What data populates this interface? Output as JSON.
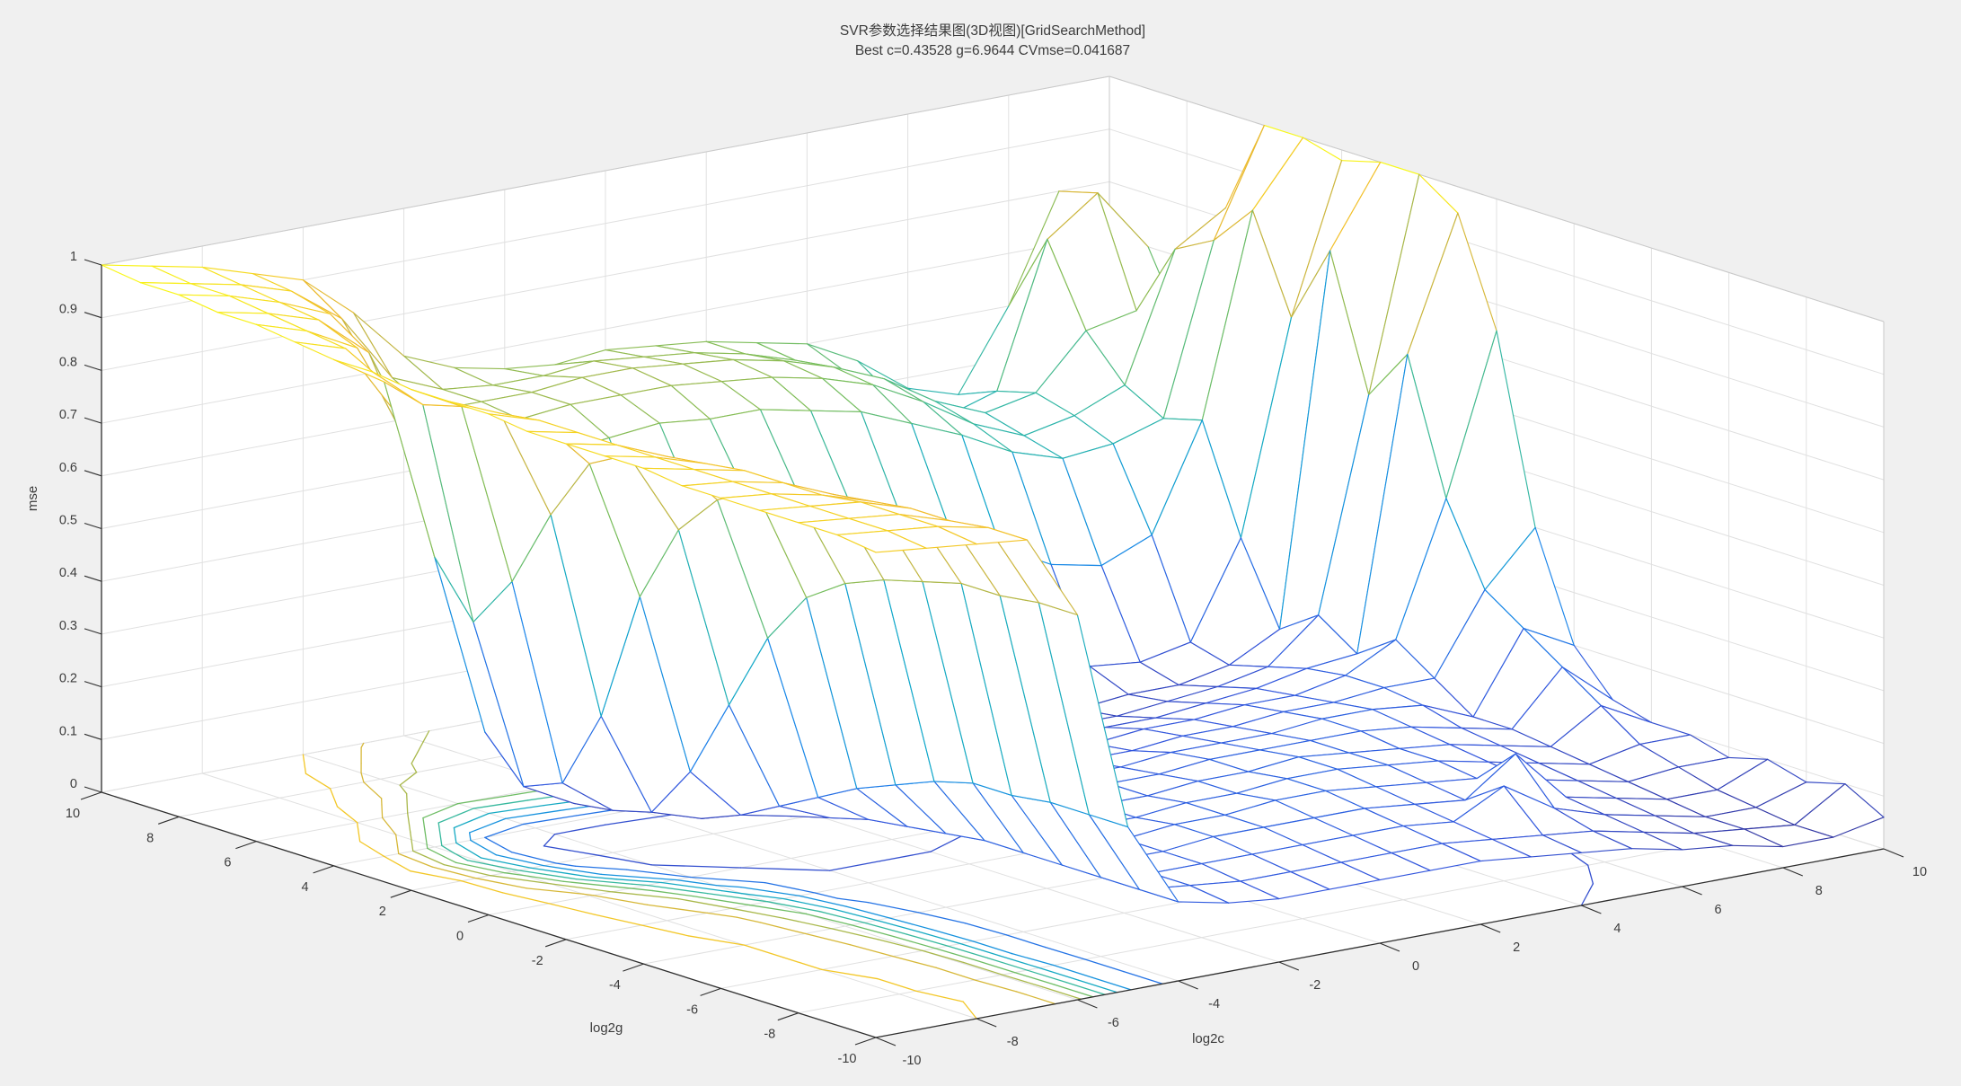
{
  "title": {
    "line1": "SVR参数选择结果图(3D视图)[GridSearchMethod]",
    "line2": "Best c=0.43528 g=6.9644 CVmse=0.041687"
  },
  "best_result": {
    "c": "0.43528",
    "g": "6.9644",
    "cvmse": "0.041687"
  },
  "colors": {
    "figure_bg": "#f0f0f0",
    "axes_bg": "#ffffff",
    "grid_line": "#e0e0e0",
    "box_edge": "#c9c9c9",
    "axis_line": "#2e2e2e",
    "text": "#3c3c3c",
    "mesh_face": "#ffffff"
  },
  "chart_data": {
    "type": "surface",
    "title": "SVR参数选择结果图(3D视图)[GridSearchMethod] / Best c=0.43528 g=6.9644 CVmse=0.041687",
    "xlabel": "log2c",
    "ylabel": "log2g",
    "zlabel": "mse",
    "xlim": [
      -10,
      10
    ],
    "ylim": [
      -10,
      10
    ],
    "zlim": [
      0,
      1
    ],
    "x_ticks": [
      -10,
      -8,
      -6,
      -4,
      -2,
      0,
      2,
      4,
      6,
      8,
      10
    ],
    "y_ticks": [
      10,
      8,
      6,
      4,
      2,
      0,
      -2,
      -4,
      -6,
      -8,
      -10
    ],
    "z_ticks": [
      0,
      0.1,
      0.2,
      0.3,
      0.4,
      0.5,
      0.6,
      0.7,
      0.8,
      0.9,
      1
    ],
    "x": [
      -10,
      -9,
      -8,
      -7,
      -6,
      -5,
      -4,
      -3,
      -2,
      -1,
      0,
      1,
      2,
      3,
      4,
      5,
      6,
      7,
      8,
      9,
      10
    ],
    "y_row_order": "log2g from +10 (first row) down to -10 (last row)",
    "y_rows": [
      10,
      9,
      8,
      7,
      6,
      5,
      4,
      3,
      2,
      1,
      0,
      -1,
      -2,
      -3,
      -4,
      -5,
      -6,
      -7,
      -8,
      -9,
      -10
    ],
    "z_cvmse": [
      [
        1.0,
        0.98,
        0.96,
        0.93,
        0.9,
        0.82,
        0.72,
        0.68,
        0.66,
        0.65,
        0.66,
        0.65,
        0.64,
        0.62,
        0.6,
        0.55,
        0.48,
        0.45,
        0.6,
        0.8,
        0.6
      ],
      [
        0.99,
        0.97,
        0.95,
        0.92,
        0.85,
        0.72,
        0.68,
        0.67,
        0.67,
        0.68,
        0.67,
        0.66,
        0.64,
        0.61,
        0.57,
        0.5,
        0.45,
        0.48,
        0.75,
        0.82,
        0.7
      ],
      [
        0.99,
        0.97,
        0.94,
        0.9,
        0.75,
        0.68,
        0.68,
        0.68,
        0.69,
        0.69,
        0.68,
        0.67,
        0.65,
        0.62,
        0.58,
        0.52,
        0.48,
        0.5,
        0.6,
        0.62,
        0.55
      ],
      [
        0.98,
        0.96,
        0.93,
        0.85,
        0.65,
        0.66,
        0.67,
        0.68,
        0.68,
        0.68,
        0.67,
        0.66,
        0.64,
        0.61,
        0.56,
        0.5,
        0.46,
        0.48,
        0.52,
        0.76,
        0.82
      ],
      [
        0.98,
        0.95,
        0.9,
        0.7,
        0.6,
        0.62,
        0.63,
        0.64,
        0.65,
        0.64,
        0.64,
        0.62,
        0.6,
        0.56,
        0.52,
        0.47,
        0.44,
        0.45,
        0.48,
        0.8,
        1.0
      ],
      [
        0.97,
        0.94,
        0.8,
        0.45,
        0.35,
        0.38,
        0.42,
        0.47,
        0.5,
        0.51,
        0.5,
        0.47,
        0.43,
        0.38,
        0.33,
        0.28,
        0.26,
        0.3,
        0.5,
        0.88,
        1.0
      ],
      [
        0.96,
        0.9,
        0.55,
        0.2,
        0.13,
        0.14,
        0.16,
        0.19,
        0.22,
        0.24,
        0.23,
        0.21,
        0.18,
        0.15,
        0.13,
        0.11,
        0.1,
        0.12,
        0.3,
        0.7,
        0.98
      ],
      [
        0.96,
        0.88,
        0.45,
        0.12,
        0.07,
        0.06,
        0.06,
        0.06,
        0.05,
        0.042,
        0.05,
        0.06,
        0.06,
        0.07,
        0.07,
        0.08,
        0.08,
        0.1,
        0.15,
        0.85,
        1.0
      ],
      [
        0.95,
        0.9,
        0.55,
        0.15,
        0.08,
        0.06,
        0.05,
        0.06,
        0.06,
        0.05,
        0.06,
        0.07,
        0.07,
        0.08,
        0.08,
        0.09,
        0.1,
        0.12,
        0.2,
        0.6,
        1.0
      ],
      [
        0.95,
        0.91,
        0.7,
        0.3,
        0.1,
        0.07,
        0.07,
        0.07,
        0.08,
        0.07,
        0.08,
        0.08,
        0.09,
        0.1,
        0.1,
        0.11,
        0.12,
        0.14,
        0.15,
        0.7,
        0.95
      ],
      [
        0.95,
        0.92,
        0.82,
        0.55,
        0.2,
        0.1,
        0.08,
        0.08,
        0.09,
        0.09,
        0.1,
        0.1,
        0.11,
        0.12,
        0.12,
        0.13,
        0.13,
        0.15,
        0.2,
        0.45,
        0.75
      ],
      [
        0.94,
        0.92,
        0.86,
        0.7,
        0.35,
        0.14,
        0.1,
        0.1,
        0.1,
        0.11,
        0.11,
        0.12,
        0.12,
        0.13,
        0.13,
        0.14,
        0.14,
        0.15,
        0.15,
        0.3,
        0.4
      ],
      [
        0.94,
        0.92,
        0.88,
        0.78,
        0.5,
        0.18,
        0.12,
        0.11,
        0.12,
        0.12,
        0.13,
        0.13,
        0.14,
        0.14,
        0.14,
        0.15,
        0.15,
        0.14,
        0.1,
        0.25,
        0.2
      ],
      [
        0.94,
        0.92,
        0.89,
        0.82,
        0.6,
        0.22,
        0.13,
        0.12,
        0.13,
        0.13,
        0.14,
        0.14,
        0.15,
        0.15,
        0.15,
        0.15,
        0.14,
        0.12,
        0.1,
        0.2,
        0.12
      ],
      [
        0.94,
        0.92,
        0.9,
        0.84,
        0.65,
        0.25,
        0.14,
        0.13,
        0.13,
        0.14,
        0.14,
        0.15,
        0.15,
        0.16,
        0.15,
        0.14,
        0.13,
        0.11,
        0.09,
        0.15,
        0.1
      ],
      [
        0.93,
        0.92,
        0.9,
        0.86,
        0.68,
        0.28,
        0.15,
        0.13,
        0.14,
        0.14,
        0.15,
        0.15,
        0.16,
        0.16,
        0.15,
        0.14,
        0.12,
        0.1,
        0.08,
        0.1,
        0.1
      ],
      [
        0.93,
        0.92,
        0.9,
        0.87,
        0.7,
        0.3,
        0.15,
        0.14,
        0.14,
        0.15,
        0.15,
        0.16,
        0.16,
        0.15,
        0.14,
        0.13,
        0.11,
        0.09,
        0.07,
        0.08,
        0.08
      ],
      [
        0.93,
        0.92,
        0.91,
        0.88,
        0.72,
        0.3,
        0.15,
        0.14,
        0.14,
        0.15,
        0.15,
        0.15,
        0.15,
        0.14,
        0.13,
        0.2,
        0.1,
        0.08,
        0.06,
        0.06,
        0.1
      ],
      [
        0.93,
        0.92,
        0.91,
        0.88,
        0.72,
        0.31,
        0.15,
        0.14,
        0.14,
        0.14,
        0.14,
        0.14,
        0.14,
        0.13,
        0.18,
        0.12,
        0.09,
        0.07,
        0.05,
        0.05,
        0.08
      ],
      [
        0.93,
        0.92,
        0.91,
        0.89,
        0.73,
        0.31,
        0.15,
        0.14,
        0.13,
        0.13,
        0.13,
        0.13,
        0.13,
        0.12,
        0.11,
        0.1,
        0.08,
        0.06,
        0.05,
        0.04,
        0.1
      ],
      [
        0.92,
        0.91,
        0.9,
        0.89,
        0.73,
        0.31,
        0.15,
        0.13,
        0.12,
        0.12,
        0.12,
        0.12,
        0.12,
        0.11,
        0.1,
        0.09,
        0.07,
        0.06,
        0.04,
        0.04,
        0.06
      ]
    ],
    "best_point": {
      "log2c": -1.2,
      "log2g": 2.8,
      "cvmse": 0.041687
    },
    "contour_levels": [
      0.1,
      0.2,
      0.3,
      0.4,
      0.5,
      0.6,
      0.7,
      0.8,
      0.9
    ],
    "colormap": "parula",
    "colormap_stops": [
      [
        0.0,
        "#352a87"
      ],
      [
        0.12,
        "#3356dd"
      ],
      [
        0.25,
        "#1b85ea"
      ],
      [
        0.38,
        "#0fa7ca"
      ],
      [
        0.5,
        "#38b99e"
      ],
      [
        0.62,
        "#7abe5a"
      ],
      [
        0.75,
        "#c6b541"
      ],
      [
        0.88,
        "#f2bc2b"
      ],
      [
        1.0,
        "#f9fb15"
      ]
    ],
    "legend": "none",
    "grid": true,
    "view": "3D, MATLAB default az=-37.5 el=30"
  }
}
